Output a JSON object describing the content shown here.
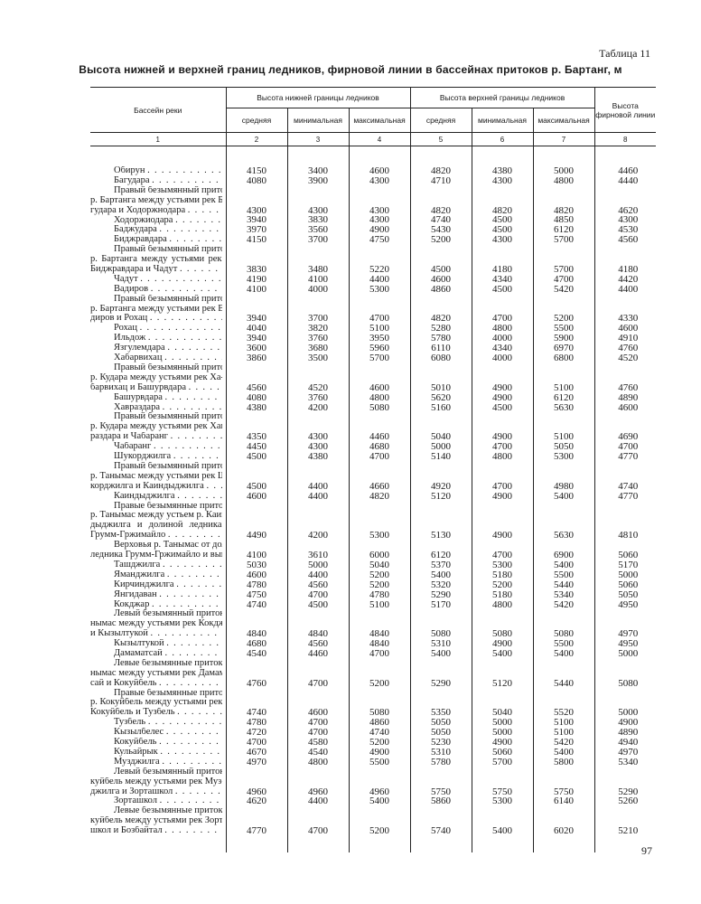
{
  "caption": "Таблица 11",
  "title": "Высота нижней и верхней границ ледников, фирновой линии в бассейнах притоков р. Бартанг, м",
  "page_number": "97",
  "header": {
    "basin": "Бассейн реки",
    "lower": "Высота нижней границы ледников",
    "upper": "Высота верхней границы ледников",
    "firn": "Высота фирновой линии",
    "sub": [
      "средняя",
      "минимальная",
      "максимальная",
      "средняя",
      "минимальная",
      "максимальная"
    ],
    "numbers": [
      "1",
      "2",
      "3",
      "4",
      "5",
      "6",
      "7",
      "8"
    ]
  },
  "rows": [
    {
      "name": [
        "Обирун"
      ],
      "v": [
        "4150",
        "3400",
        "4600",
        "4820",
        "4380",
        "5000",
        "4460"
      ]
    },
    {
      "name": [
        "Багудара"
      ],
      "v": [
        "4080",
        "3900",
        "4300",
        "4710",
        "4300",
        "4800",
        "4440"
      ]
    },
    {
      "name": [
        "Правый безымянный приток",
        "р. Бартанга между устьями рек Ба-",
        "гудара и Ходоржнодара"
      ],
      "v": [
        "4300",
        "4300",
        "4300",
        "4820",
        "4820",
        "4820",
        "4620"
      ]
    },
    {
      "name": [
        "Ходоржиодара"
      ],
      "v": [
        "3940",
        "3830",
        "4300",
        "4740",
        "4500",
        "4850",
        "4300"
      ]
    },
    {
      "name": [
        "Баджудара"
      ],
      "v": [
        "3970",
        "3560",
        "4900",
        "5430",
        "4500",
        "6120",
        "4530"
      ]
    },
    {
      "name": [
        "Биджравдара"
      ],
      "v": [
        "4150",
        "3700",
        "4750",
        "5200",
        "4300",
        "5700",
        "4560"
      ]
    },
    {
      "name": [
        "Правый безымянный приток",
        "р. Бартанга между устьями рек",
        "Биджравдара и Чадут"
      ],
      "v": [
        "3830",
        "3480",
        "5220",
        "4500",
        "4180",
        "5700",
        "4180"
      ]
    },
    {
      "name": [
        "Чадут"
      ],
      "v": [
        "4190",
        "4100",
        "4400",
        "4600",
        "4340",
        "4700",
        "4420"
      ]
    },
    {
      "name": [
        "Вадиров"
      ],
      "v": [
        "4100",
        "4000",
        "5300",
        "4860",
        "4500",
        "5420",
        "4400"
      ]
    },
    {
      "name": [
        "Правый безымянный приток",
        "р. Бартанга между устьями рек Ва-",
        "диров и Рохац"
      ],
      "v": [
        "3940",
        "3700",
        "4700",
        "4820",
        "4700",
        "5200",
        "4330"
      ]
    },
    {
      "name": [
        "Рохац"
      ],
      "v": [
        "4040",
        "3820",
        "5100",
        "5280",
        "4800",
        "5500",
        "4600"
      ]
    },
    {
      "name": [
        "Ильдож"
      ],
      "v": [
        "3940",
        "3760",
        "3950",
        "5780",
        "4000",
        "5900",
        "4910"
      ]
    },
    {
      "name": [
        "Язгулемдара"
      ],
      "v": [
        "3600",
        "3680",
        "5960",
        "6110",
        "4340",
        "6970",
        "4760"
      ]
    },
    {
      "name": [
        "Хабарвихац"
      ],
      "v": [
        "3860",
        "3500",
        "5700",
        "6080",
        "4000",
        "6800",
        "4520"
      ]
    },
    {
      "name": [
        "Правый безымянный приток",
        "р. Кудара между устьями рек Ха-",
        "барвихац и Башурвдара"
      ],
      "v": [
        "4560",
        "4520",
        "4600",
        "5010",
        "4900",
        "5100",
        "4760"
      ]
    },
    {
      "name": [
        "Башурвдара"
      ],
      "v": [
        "4080",
        "3760",
        "4800",
        "5620",
        "4900",
        "6120",
        "4890"
      ]
    },
    {
      "name": [
        "Хавраздара"
      ],
      "v": [
        "4380",
        "4200",
        "5080",
        "5160",
        "4500",
        "5630",
        "4600"
      ]
    },
    {
      "name": [
        "Правый безымянный приток",
        "р. Кудара между устьями рек Хав-",
        "раздара и Чабаранг"
      ],
      "v": [
        "4350",
        "4300",
        "4460",
        "5040",
        "4900",
        "5100",
        "4690"
      ]
    },
    {
      "name": [
        "Чабаранг"
      ],
      "v": [
        "4450",
        "4300",
        "4680",
        "5000",
        "4700",
        "5050",
        "4700"
      ]
    },
    {
      "name": [
        "Шукорджилга"
      ],
      "v": [
        "4500",
        "4380",
        "4700",
        "5140",
        "4800",
        "5300",
        "4770"
      ]
    },
    {
      "name": [
        "Правый безымянный приток",
        "р. Танымас между устьями рек Шу-",
        "корджилга и Каиндыджилга"
      ],
      "v": [
        "4500",
        "4400",
        "4660",
        "4920",
        "4700",
        "4980",
        "4740"
      ]
    },
    {
      "name": [
        "Каиндыджилга"
      ],
      "v": [
        "4600",
        "4400",
        "4820",
        "5120",
        "4900",
        "5400",
        "4770"
      ]
    },
    {
      "name": [
        "Правые безымянные притоки",
        "р. Танымас между устьем р. Каин-",
        "дыджилга и долиной ледника",
        "Грумм-Гржимайло"
      ],
      "v": [
        "4490",
        "4200",
        "5300",
        "5130",
        "4900",
        "5630",
        "4810"
      ]
    },
    {
      "name": [
        "Верховья р. Танымас от долины",
        "ледника Грумм-Гржимайло и выше"
      ],
      "v": [
        "4100",
        "3610",
        "6000",
        "6120",
        "4700",
        "6900",
        "5060"
      ],
      "nodots": true
    },
    {
      "name": [
        "Ташджилга"
      ],
      "v": [
        "5030",
        "5000",
        "5040",
        "5370",
        "5300",
        "5400",
        "5170"
      ]
    },
    {
      "name": [
        "Яманджилга"
      ],
      "v": [
        "4600",
        "4400",
        "5200",
        "5400",
        "5180",
        "5500",
        "5000"
      ]
    },
    {
      "name": [
        "Кирчинджилга"
      ],
      "v": [
        "4780",
        "4560",
        "5200",
        "5320",
        "5200",
        "5440",
        "5060"
      ]
    },
    {
      "name": [
        "Янгидаван"
      ],
      "v": [
        "4750",
        "4700",
        "4780",
        "5290",
        "5180",
        "5340",
        "5050"
      ]
    },
    {
      "name": [
        "Кокджар"
      ],
      "v": [
        "4740",
        "4500",
        "5100",
        "5170",
        "4800",
        "5420",
        "4950"
      ]
    },
    {
      "name": [
        "Левый безымянный приток р. Та-",
        "нымас между устьями рек Кокджар",
        "и Кызылтукой"
      ],
      "v": [
        "4840",
        "4840",
        "4840",
        "5080",
        "5080",
        "5080",
        "4970"
      ]
    },
    {
      "name": [
        "Кызылтукой"
      ],
      "v": [
        "4680",
        "4560",
        "4840",
        "5310",
        "4900",
        "5500",
        "4950"
      ]
    },
    {
      "name": [
        "Дамаматсай"
      ],
      "v": [
        "4540",
        "4460",
        "4700",
        "5400",
        "5400",
        "5400",
        "5000"
      ]
    },
    {
      "name": [
        "Левые безымянные притоки р. Та-",
        "нымас между устьями рек Дамамат-",
        "сай и Кокуйбель"
      ],
      "v": [
        "4760",
        "4700",
        "5200",
        "5290",
        "5120",
        "5440",
        "5080"
      ]
    },
    {
      "name": [
        "Правые безымянные притоки",
        "р. Кокуйбель между устьями рек",
        "Кокуйбель и Тузбель"
      ],
      "v": [
        "4740",
        "4600",
        "5080",
        "5350",
        "5040",
        "5520",
        "5000"
      ]
    },
    {
      "name": [
        "Тузбель"
      ],
      "v": [
        "4780",
        "4700",
        "4860",
        "5050",
        "5000",
        "5100",
        "4900"
      ]
    },
    {
      "name": [
        "Кызылбелес"
      ],
      "v": [
        "4720",
        "4700",
        "4740",
        "5050",
        "5000",
        "5100",
        "4890"
      ]
    },
    {
      "name": [
        "Кокуйбель"
      ],
      "v": [
        "4700",
        "4580",
        "5200",
        "5230",
        "4900",
        "5420",
        "4940"
      ]
    },
    {
      "name": [
        "Кульайрык"
      ],
      "v": [
        "4670",
        "4540",
        "4900",
        "5310",
        "5060",
        "5400",
        "4970"
      ]
    },
    {
      "name": [
        "Музджилга"
      ],
      "v": [
        "4970",
        "4800",
        "5500",
        "5780",
        "5700",
        "5800",
        "5340"
      ]
    },
    {
      "name": [
        "Левый безымянный приток р. Ко-",
        "куйбель между устьями рек Муз-",
        "джилга и Зорташкол"
      ],
      "v": [
        "4960",
        "4960",
        "4960",
        "5750",
        "5750",
        "5750",
        "5290"
      ]
    },
    {
      "name": [
        "Зорташкол"
      ],
      "v": [
        "4620",
        "4400",
        "5400",
        "5860",
        "5300",
        "6140",
        "5260"
      ]
    },
    {
      "name": [
        "Левые безымянные притоки р. Ко-",
        "куйбель между устьями рек Зорта-",
        "школ и Бозбайтал"
      ],
      "v": [
        "4770",
        "4700",
        "5200",
        "5740",
        "5400",
        "6020",
        "5210"
      ]
    }
  ]
}
